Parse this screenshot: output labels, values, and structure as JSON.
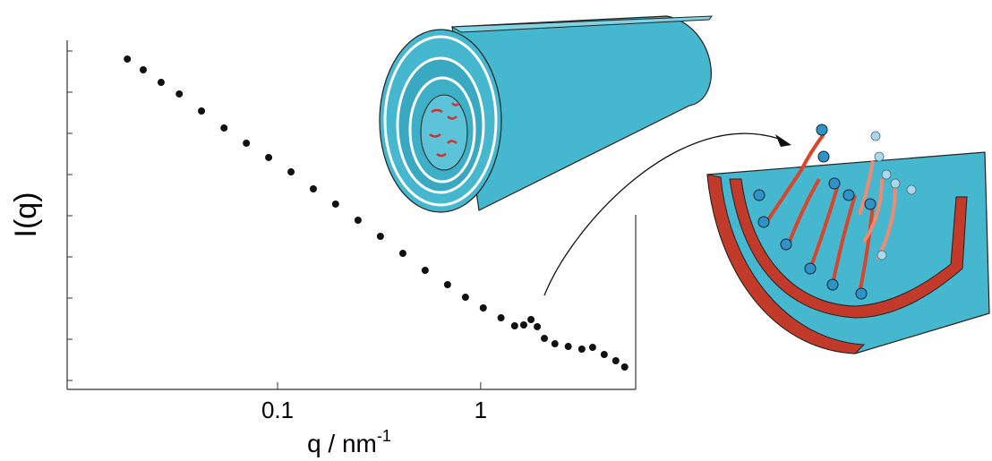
{
  "chart_data": {
    "type": "scatter",
    "x_label": "q / nm",
    "x_label_superscript": "-1",
    "y_label": "I(q)",
    "xscale": "log",
    "yscale": "log",
    "color": "#111111",
    "xlim": [
      0.0092,
      5.8
    ],
    "xticks": [
      0.1,
      1
    ],
    "ylim": [
      0.607,
      182000000
    ],
    "yticks": [
      1,
      10,
      100,
      1000,
      10000,
      100000,
      1000000,
      10000000,
      100000000
    ],
    "x": [
      0.0182,
      0.0218,
      0.0267,
      0.0328,
      0.0422,
      0.0545,
      0.0702,
      0.0904,
      0.1165,
      0.15,
      0.193,
      0.249,
      0.321,
      0.414,
      0.533,
      0.687,
      0.842,
      1.03,
      1.26,
      1.47,
      1.63,
      1.77,
      1.9,
      2.06,
      2.32,
      2.7,
      3.15,
      3.56,
      4.06,
      4.63,
      5.12
    ],
    "values": [
      63700000,
      34900000,
      17300000,
      9060000,
      3490000,
      1350000,
      577000,
      259000,
      116000,
      44900,
      19200,
      7780,
      3160,
      1220,
      472,
      212,
      105,
      57.7,
      33.2,
      21.2,
      22.3,
      30.1,
      20.2,
      10.5,
      7.78,
      6.7,
      5.77,
      6.37,
      4.27,
      3.01,
      2.12
    ]
  }
}
